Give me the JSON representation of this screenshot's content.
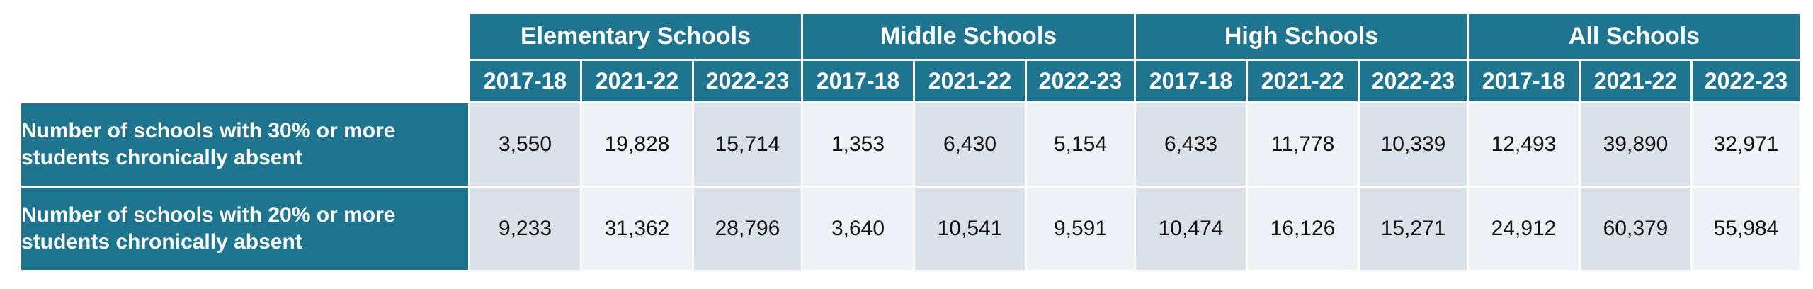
{
  "chart_data": {
    "type": "table",
    "column_groups": [
      "Elementary Schools",
      "Middle Schools",
      "High Schools",
      "All Schools"
    ],
    "years": [
      "2017-18",
      "2021-22",
      "2022-23"
    ],
    "rows": [
      {
        "label": "Number of schools with 30% or more students chronically absent",
        "values": [
          "3,550",
          "19,828",
          "15,714",
          "1,353",
          "6,430",
          "5,154",
          "6,433",
          "11,778",
          "10,339",
          "12,493",
          "39,890",
          "32,971"
        ]
      },
      {
        "label": "Number of schools with 20% or more students chronically absent",
        "values": [
          "9,233",
          "31,362",
          "28,796",
          "3,640",
          "10,541",
          "9,591",
          "10,474",
          "16,126",
          "15,271",
          "24,912",
          "60,379",
          "55,984"
        ]
      }
    ]
  },
  "colors": {
    "header_bg": "#1e7590",
    "cell_shade": "#dbe1e9",
    "cell_light": "#eef1f5"
  }
}
